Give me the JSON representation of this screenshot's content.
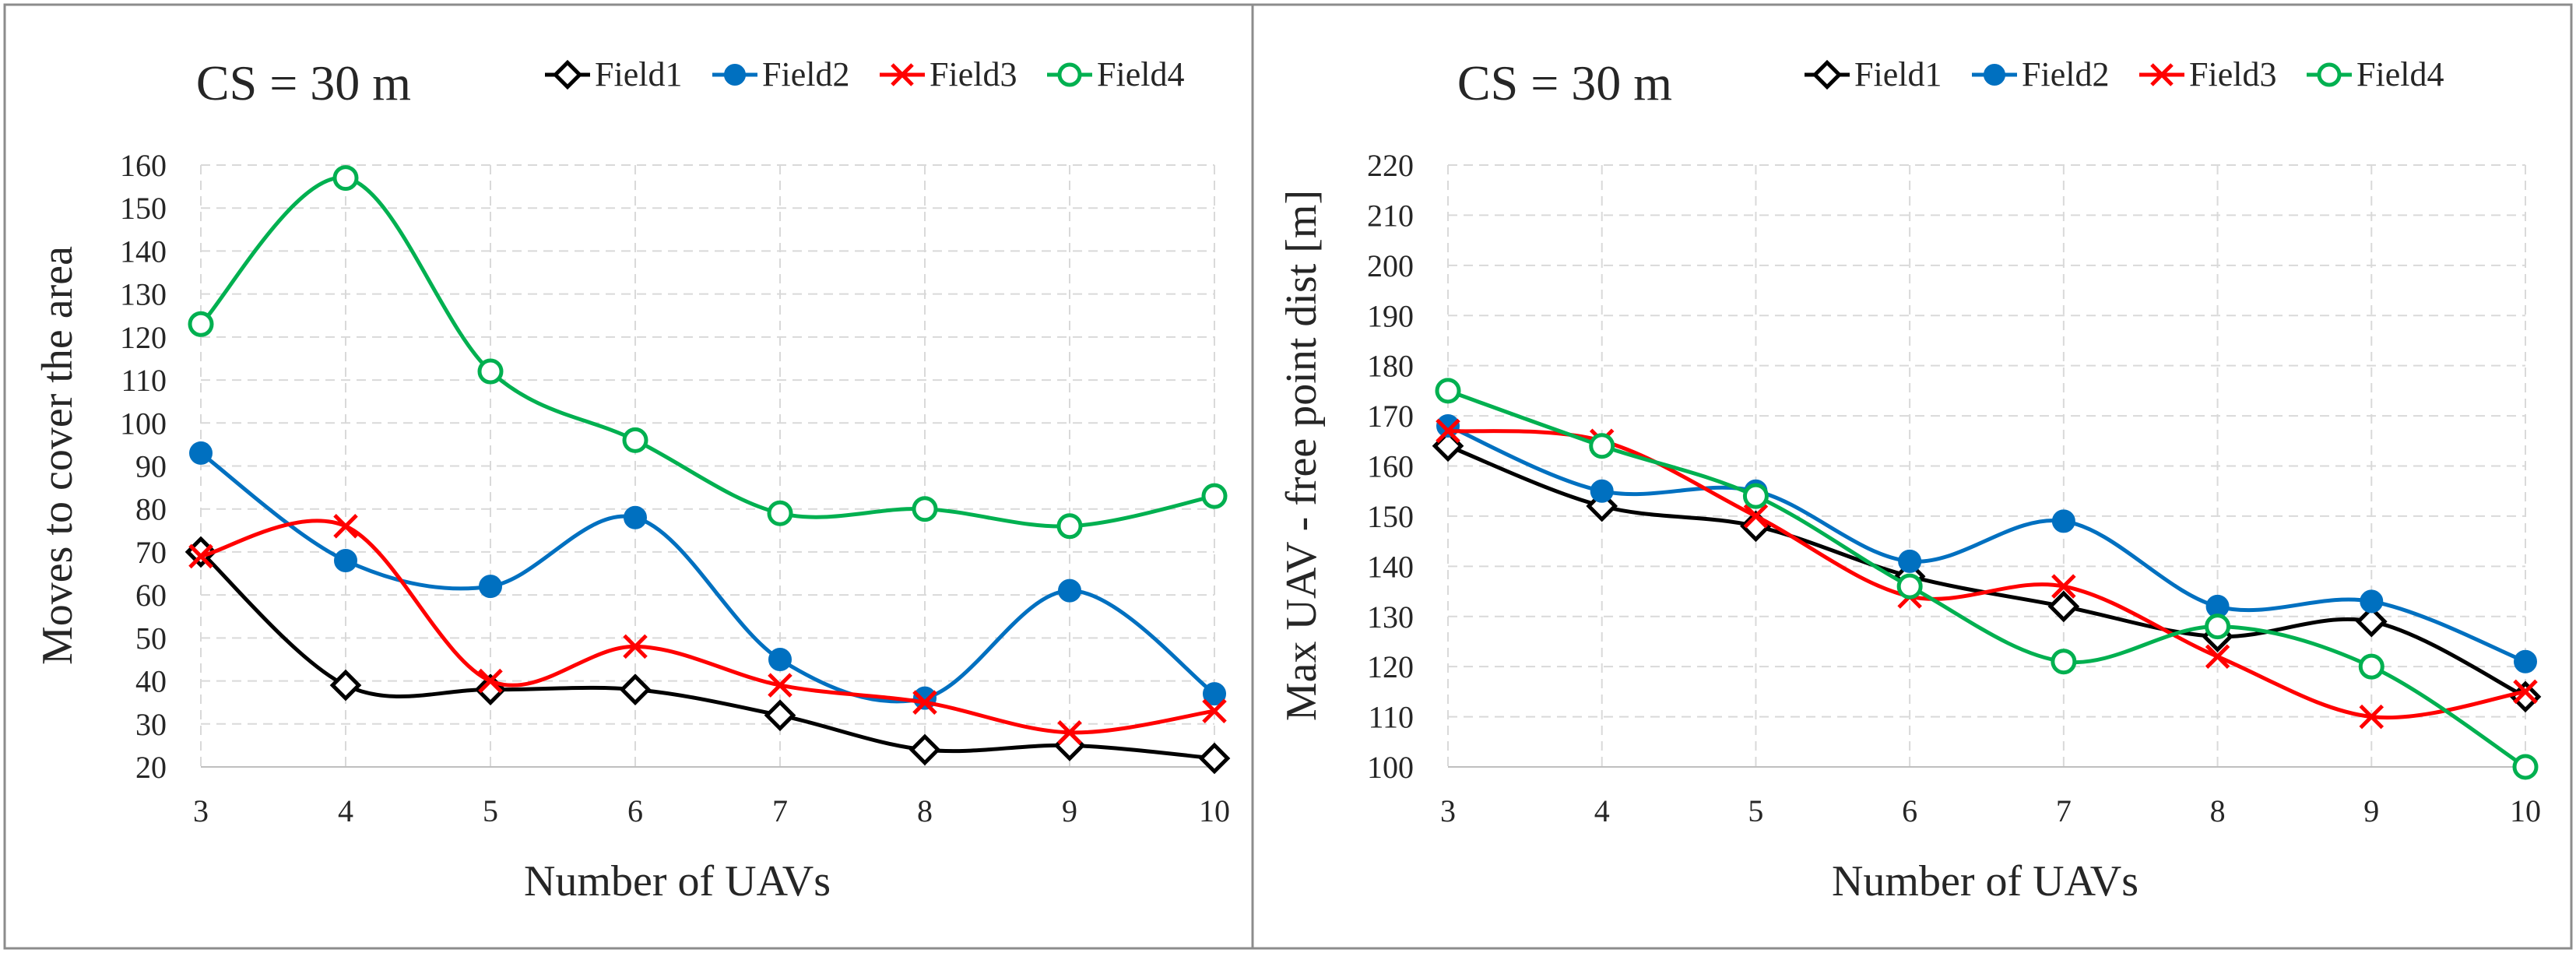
{
  "colors": {
    "Field1": "#000000",
    "Field2": "#0070C0",
    "Field3": "#FF0000",
    "Field4": "#00B050"
  },
  "chart_data": [
    {
      "type": "line",
      "title": "CS = 30 m",
      "xlabel": "Number of UAVs",
      "ylabel": "Moves to cover the area",
      "x": [
        3,
        4,
        5,
        6,
        7,
        8,
        9,
        10
      ],
      "xticks": [
        "3",
        "4",
        "5",
        "6",
        "7",
        "8",
        "9",
        "10"
      ],
      "ylim": [
        20,
        160
      ],
      "yticks": [
        "20",
        "30",
        "40",
        "50",
        "60",
        "70",
        "80",
        "90",
        "100",
        "110",
        "120",
        "130",
        "140",
        "150",
        "160"
      ],
      "grid": true,
      "legend": "top",
      "series": [
        {
          "name": "Field1",
          "marker": "diamond-open",
          "values": [
            70,
            39,
            38,
            38,
            32,
            24,
            25,
            22
          ]
        },
        {
          "name": "Field2",
          "marker": "circle-filled",
          "values": [
            93,
            68,
            62,
            78,
            45,
            36,
            61,
            37
          ]
        },
        {
          "name": "Field3",
          "marker": "x",
          "values": [
            69,
            76,
            40,
            48,
            39,
            35,
            28,
            33
          ]
        },
        {
          "name": "Field4",
          "marker": "circle-open",
          "values": [
            123,
            157,
            112,
            96,
            79,
            80,
            76,
            83
          ]
        }
      ]
    },
    {
      "type": "line",
      "title": "CS = 30 m",
      "xlabel": "Number of UAVs",
      "ylabel": "Max UAV - free point dist [m]",
      "x": [
        3,
        4,
        5,
        6,
        7,
        8,
        9,
        10
      ],
      "xticks": [
        "3",
        "4",
        "5",
        "6",
        "7",
        "8",
        "9",
        "10"
      ],
      "ylim": [
        100,
        220
      ],
      "yticks": [
        "100",
        "110",
        "120",
        "130",
        "140",
        "150",
        "160",
        "170",
        "180",
        "190",
        "200",
        "210",
        "220"
      ],
      "grid": true,
      "legend": "top",
      "series": [
        {
          "name": "Field1",
          "marker": "diamond-open",
          "values": [
            164,
            152,
            148,
            138,
            132,
            126,
            129,
            114
          ]
        },
        {
          "name": "Field2",
          "marker": "circle-filled",
          "values": [
            168,
            155,
            155,
            141,
            149,
            132,
            133,
            121
          ]
        },
        {
          "name": "Field3",
          "marker": "x",
          "values": [
            167,
            165,
            150,
            134,
            136,
            122,
            110,
            115
          ]
        },
        {
          "name": "Field4",
          "marker": "circle-open",
          "values": [
            175,
            164,
            154,
            136,
            121,
            128,
            120,
            100
          ]
        }
      ]
    }
  ]
}
